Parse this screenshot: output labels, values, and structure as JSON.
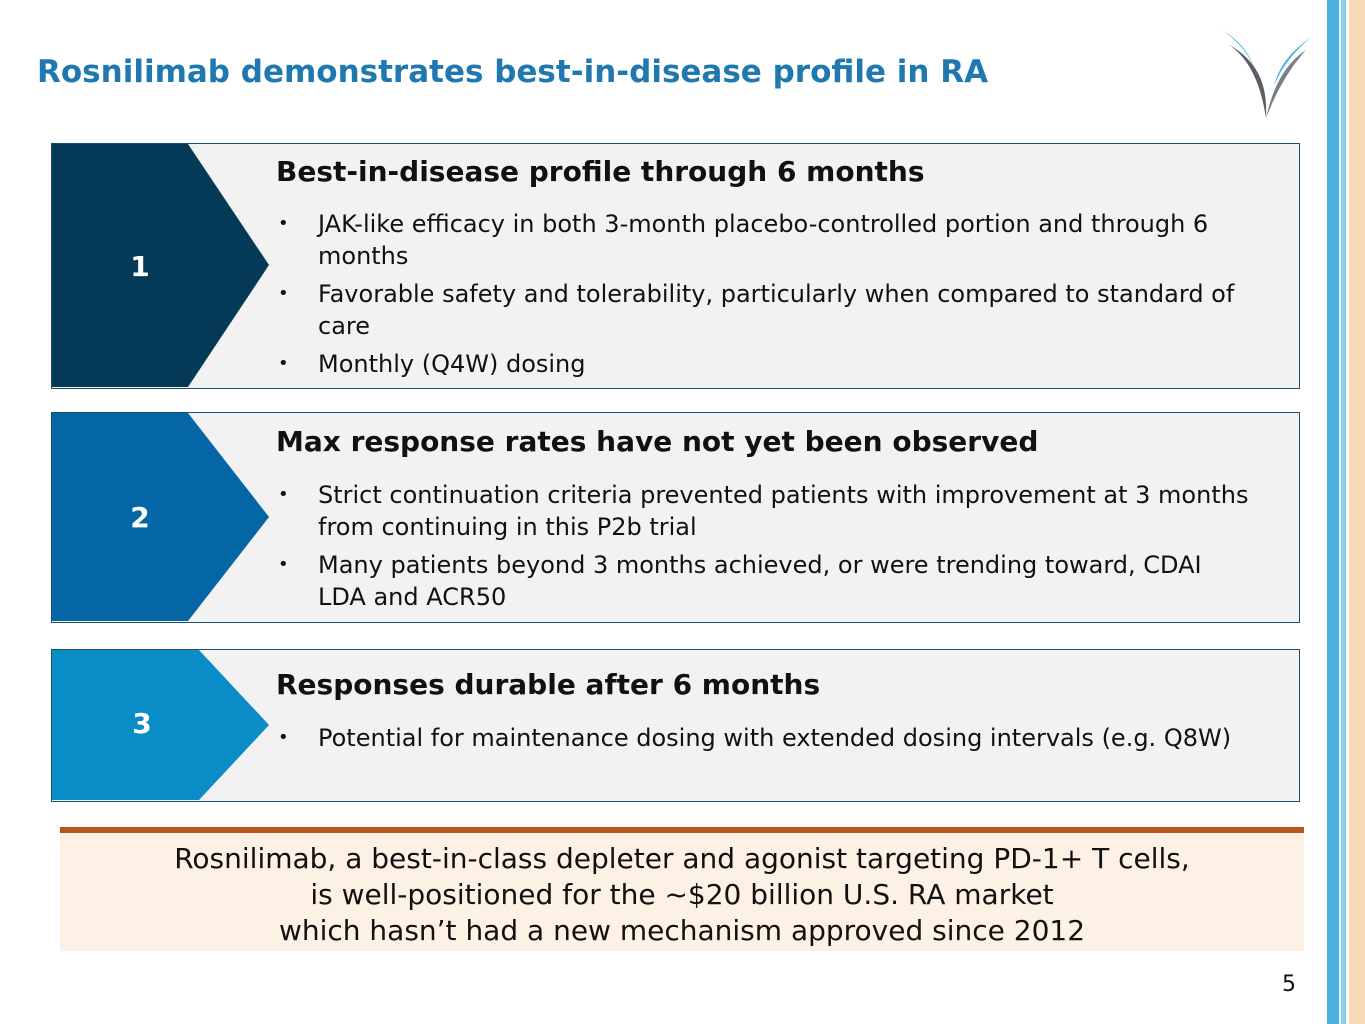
{
  "slide": {
    "title": "Rosnilimab demonstrates best-in-disease profile in RA",
    "page_number": "5"
  },
  "cards": [
    {
      "number": "1",
      "color": "#043a57",
      "heading": "Best-in-disease profile through 6 months",
      "bullets": [
        "JAK-like efficacy in both 3-month placebo-controlled portion and through 6 months",
        "Favorable safety and tolerability, particularly when compared to standard of care",
        "Monthly (Q4W) dosing"
      ]
    },
    {
      "number": "2",
      "color": "#0466a4",
      "heading": "Max response rates have not yet been observed",
      "bullets": [
        "Strict continuation criteria prevented patients with improvement at 3 months from continuing in this P2b trial",
        "Many patients beyond 3 months achieved, or were trending toward, CDAI LDA and ACR50"
      ]
    },
    {
      "number": "3",
      "color": "#0a8cc6",
      "heading": "Responses durable after 6 months",
      "bullets": [
        "Potential for maintenance dosing with extended dosing intervals (e.g. Q8W)"
      ]
    }
  ],
  "banner": {
    "lines": [
      "Rosnilimab, a best-in-class depleter and agonist targeting PD-1+ T cells,",
      "is well-positioned for the ~$20 billion U.S. RA market",
      "which hasn’t had a new mechanism approved since 2012"
    ]
  }
}
